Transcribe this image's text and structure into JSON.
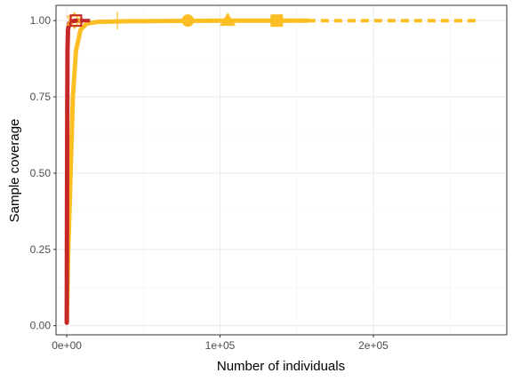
{
  "chart_data": {
    "type": "line",
    "title": "",
    "xlabel": "Number of individuals",
    "ylabel": "Sample coverage",
    "xlim": [
      -7000,
      287000
    ],
    "ylim": [
      -0.03,
      1.05
    ],
    "x_ticks": [
      {
        "value": 0,
        "label": "0e+00"
      },
      {
        "value": 100000,
        "label": "1e+05"
      },
      {
        "value": 200000,
        "label": "2e+05"
      }
    ],
    "y_ticks": [
      {
        "value": 0,
        "label": "0.00"
      },
      {
        "value": 0.25,
        "label": "0.25"
      },
      {
        "value": 0.5,
        "label": "0.50"
      },
      {
        "value": 0.75,
        "label": "0.75"
      },
      {
        "value": 1,
        "label": "1.00"
      }
    ],
    "grid": true,
    "legend": "none",
    "series": [
      {
        "color": "#FBBF24",
        "interpolated": [
          [
            0,
            0.01
          ],
          [
            1000,
            0.25
          ],
          [
            2500,
            0.5
          ],
          [
            4000,
            0.75
          ],
          [
            6000,
            0.9
          ],
          [
            9000,
            0.97
          ],
          [
            13000,
            0.99
          ],
          [
            20000,
            0.996
          ],
          [
            40000,
            0.998
          ],
          [
            80000,
            0.999
          ],
          [
            105000,
            1.0
          ],
          [
            137000,
            1.0
          ],
          [
            157000,
            1.0
          ]
        ],
        "extrapolated": [
          [
            157000,
            1.0
          ],
          [
            270000,
            1.0
          ]
        ],
        "points": [
          {
            "x": 79000,
            "y": 1.0,
            "shape": "circle"
          },
          {
            "x": 105000,
            "y": 1.0,
            "shape": "triangle"
          },
          {
            "x": 137000,
            "y": 1.0,
            "shape": "square"
          },
          {
            "x": 5000,
            "y": 1.0,
            "shape": "star"
          },
          {
            "x": 33000,
            "y": 1.0,
            "shape": "plus"
          }
        ]
      },
      {
        "color": "#C62828",
        "interpolated": [
          [
            0,
            0.01
          ],
          [
            150,
            0.3
          ],
          [
            300,
            0.65
          ],
          [
            500,
            0.9
          ],
          [
            800,
            0.97
          ],
          [
            1500,
            0.99
          ],
          [
            3000,
            0.997
          ],
          [
            6000,
            1.0
          ],
          [
            10000,
            1.0
          ]
        ],
        "extrapolated": [
          [
            10000,
            1.0
          ],
          [
            16000,
            1.0
          ]
        ],
        "points": [
          {
            "x": 6000,
            "y": 1.0,
            "shape": "square-open"
          }
        ]
      }
    ]
  }
}
